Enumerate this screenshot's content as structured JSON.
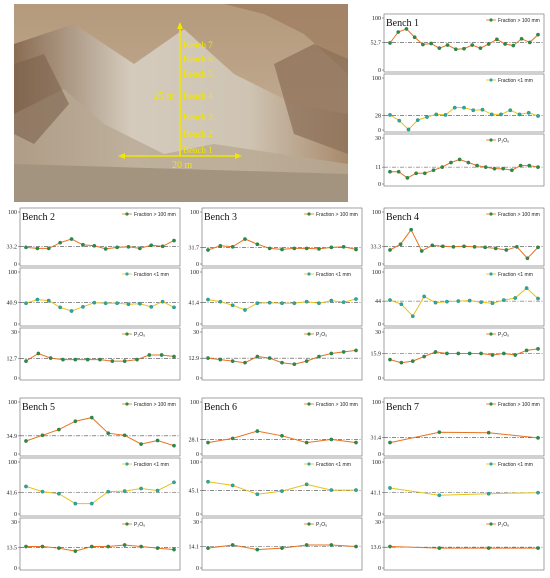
{
  "photo": {
    "bench_labels": [
      "Bench 7",
      "Bench 6",
      "Bench 5",
      "Bench 4",
      "Bench 3",
      "Bench 2",
      "Bench 1"
    ],
    "height_label": "25 m",
    "width_label": "20 m",
    "annotation_color": "#f2e600"
  },
  "colors": {
    "fine": "#e6c21a",
    "coarse": "#e8721f",
    "p2o5": "#e8721f",
    "guide": "#444444",
    "marker_fill": "#2aa9a0",
    "marker_green": "#2e8b3d"
  },
  "chart_data": [
    {
      "title": "Bench 1",
      "type": "line",
      "series": [
        {
          "name": "Fraction > 100 mm",
          "ylim": [
            0,
            100
          ],
          "ticks": [
            "100",
            "52.7",
            "0"
          ],
          "ref": 52.7,
          "values": [
            52,
            73,
            79,
            63,
            49,
            51,
            42,
            48,
            40,
            41,
            48,
            42,
            50,
            59,
            50,
            47,
            60,
            53,
            68
          ]
        },
        {
          "name": "Fraction <1 mm",
          "ylim": [
            0,
            100
          ],
          "ticks": [
            "100",
            "28",
            "0"
          ],
          "ref": 28,
          "values": [
            29,
            18,
            1,
            19,
            25,
            30,
            29,
            43,
            43,
            38,
            39,
            30,
            30,
            38,
            30,
            33,
            27
          ]
        },
        {
          "name": "P₂O₅",
          "ylim": [
            0,
            30
          ],
          "ticks": [
            "30",
            "11",
            "0"
          ],
          "ref": 11,
          "values": [
            8,
            8,
            4,
            7,
            7,
            9,
            11,
            14,
            16,
            14,
            12,
            11,
            10,
            10,
            9,
            12,
            12,
            11
          ]
        }
      ]
    },
    {
      "title": "Bench 2",
      "type": "line",
      "series": [
        {
          "name": "Fraction > 100 mm",
          "ylim": [
            0,
            100
          ],
          "ticks": [
            "100",
            "33.2",
            "0"
          ],
          "ref": 33.2,
          "values": [
            32,
            30,
            30,
            41,
            48,
            37,
            35,
            29,
            32,
            33,
            30,
            36,
            34,
            45
          ]
        },
        {
          "name": "Fraction <1 mm",
          "ylim": [
            0,
            100
          ],
          "ticks": [
            "100",
            "40.9",
            "0"
          ],
          "ref": 40.9,
          "values": [
            40,
            47,
            45,
            32,
            25,
            33,
            41,
            40,
            40,
            38,
            39,
            33,
            43,
            32
          ]
        },
        {
          "name": "P₂O₅",
          "ylim": [
            0,
            30
          ],
          "ticks": [
            "30",
            "12.7",
            "0"
          ],
          "ref": 12.7,
          "values": [
            11,
            16,
            13,
            12,
            12,
            12,
            12,
            11,
            11,
            12,
            15,
            15,
            14
          ]
        }
      ]
    },
    {
      "title": "Bench 3",
      "type": "line",
      "series": [
        {
          "name": "Fraction > 100 mm",
          "ylim": [
            0,
            100
          ],
          "ticks": [
            "100",
            "31.7",
            "0"
          ],
          "ref": 31.7,
          "values": [
            27,
            35,
            33,
            48,
            38,
            30,
            28,
            30,
            30,
            29,
            32,
            33,
            28
          ]
        },
        {
          "name": "Fraction <1 mm",
          "ylim": [
            0,
            100
          ],
          "ticks": [
            "100",
            "41.4",
            "0"
          ],
          "ref": 41.4,
          "values": [
            47,
            43,
            36,
            27,
            40,
            41,
            40,
            40,
            43,
            40,
            45,
            42,
            48
          ]
        },
        {
          "name": "P₂O₅",
          "ylim": [
            0,
            30
          ],
          "ticks": [
            "30",
            "12.9",
            "0"
          ],
          "ref": 12.9,
          "values": [
            13,
            12,
            11,
            10,
            14,
            13,
            10,
            9,
            11,
            14,
            16,
            17,
            18
          ]
        }
      ]
    },
    {
      "title": "Bench 4",
      "type": "line",
      "series": [
        {
          "name": "Fraction > 100 mm",
          "ylim": [
            0,
            100
          ],
          "ticks": [
            "100",
            "33.3",
            "0"
          ],
          "ref": 33.3,
          "values": [
            27,
            38,
            66,
            25,
            36,
            34,
            33,
            34,
            33,
            32,
            30,
            27,
            33,
            11,
            32
          ]
        },
        {
          "name": "Fraction <1 mm",
          "ylim": [
            0,
            100
          ],
          "ticks": [
            "100",
            "44",
            "0"
          ],
          "ref": 44,
          "values": [
            46,
            38,
            15,
            53,
            41,
            43,
            44,
            45,
            42,
            40,
            46,
            50,
            69,
            49
          ]
        },
        {
          "name": "P₂O₅",
          "ylim": [
            0,
            30
          ],
          "ticks": [
            "30",
            "15.9",
            "0"
          ],
          "ref": 15.9,
          "values": [
            12,
            10,
            11,
            14,
            17,
            16,
            16,
            16,
            16,
            15,
            16,
            15,
            18,
            19
          ]
        }
      ]
    },
    {
      "title": "Bench 5",
      "type": "line",
      "series": [
        {
          "name": "Fraction > 100 mm",
          "ylim": [
            0,
            100
          ],
          "ticks": [
            "100",
            "34.9",
            "0"
          ],
          "ref": 34.9,
          "values": [
            25,
            36,
            47,
            63,
            70,
            40,
            36,
            19,
            26,
            16
          ]
        },
        {
          "name": "Fraction <1 mm",
          "ylim": [
            0,
            100
          ],
          "ticks": [
            "100",
            "41.6",
            "0"
          ],
          "ref": 41.6,
          "values": [
            53,
            43,
            39,
            20,
            20,
            43,
            44,
            49,
            45,
            61
          ]
        },
        {
          "name": "P₂O₅",
          "ylim": [
            0,
            30
          ],
          "ticks": [
            "30",
            "13.5",
            "0"
          ],
          "ref": 13.5,
          "values": [
            14,
            14,
            13,
            11,
            14,
            14,
            15,
            14,
            13,
            12
          ]
        }
      ]
    },
    {
      "title": "Bench 6",
      "type": "line",
      "series": [
        {
          "name": "Fraction > 100 mm",
          "ylim": [
            0,
            100
          ],
          "ticks": [
            "100",
            "28.1",
            "0"
          ],
          "ref": 28.1,
          "values": [
            22,
            30,
            44,
            35,
            22,
            28,
            22
          ]
        },
        {
          "name": "Fraction <1 mm",
          "ylim": [
            0,
            100
          ],
          "ticks": [
            "100",
            "45.1",
            "0"
          ],
          "ref": 45.1,
          "values": [
            62,
            55,
            38,
            44,
            57,
            46,
            46
          ]
        },
        {
          "name": "P₂O₅",
          "ylim": [
            0,
            30
          ],
          "ticks": [
            "30",
            "14.1",
            "0"
          ],
          "ref": 14.1,
          "values": [
            13,
            15,
            12,
            13,
            15,
            15,
            14
          ]
        }
      ]
    },
    {
      "title": "Bench 7",
      "type": "line",
      "series": [
        {
          "name": "Fraction > 100 mm",
          "ylim": [
            0,
            100
          ],
          "ticks": [
            "100",
            "31.4",
            "0"
          ],
          "ref": 31.4,
          "values": [
            22,
            42,
            41,
            31
          ]
        },
        {
          "name": "Fraction <1 mm",
          "ylim": [
            0,
            100
          ],
          "ticks": [
            "100",
            "41.1",
            "0"
          ],
          "ref": 41.1,
          "values": [
            50,
            36,
            39,
            41
          ]
        },
        {
          "name": "P₂O₅",
          "ylim": [
            0,
            30
          ],
          "ticks": [
            "30",
            "13.6",
            "0"
          ],
          "ref": 13.6,
          "values": [
            14,
            13,
            13,
            13
          ]
        }
      ]
    }
  ]
}
